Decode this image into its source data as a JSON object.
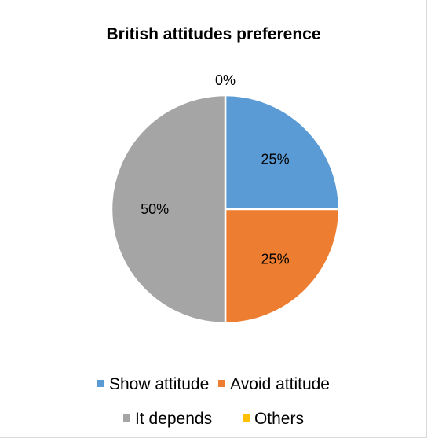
{
  "chart_data": {
    "type": "pie",
    "title": "British attitudes preference",
    "categories": [
      "Show attitude",
      "Avoid attitude",
      "It depends",
      "Others"
    ],
    "values": [
      25,
      25,
      50,
      0
    ],
    "labels": [
      "25%",
      "25%",
      "50%",
      "0%"
    ],
    "colors": [
      "#5b9bd5",
      "#ed7d31",
      "#a5a5a5",
      "#ffc000"
    ],
    "legend_position": "bottom"
  }
}
